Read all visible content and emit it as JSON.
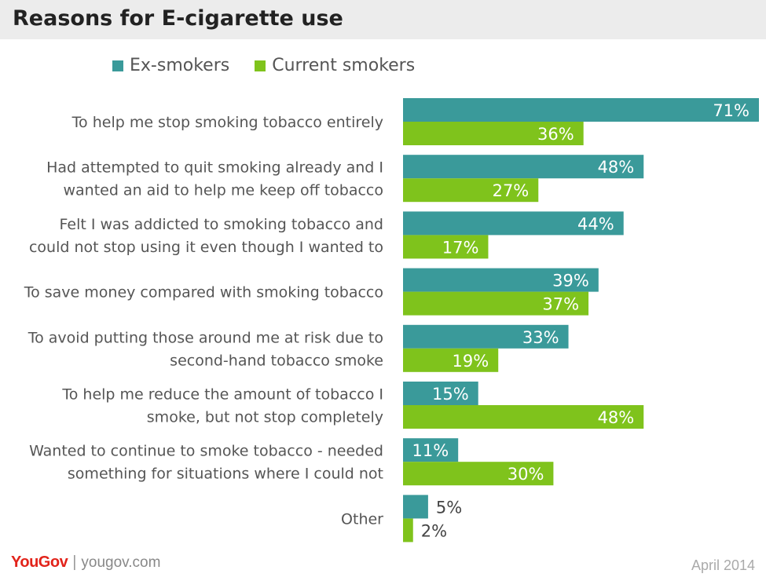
{
  "chart_data": {
    "type": "bar",
    "orientation": "horizontal",
    "title": "Reasons for E-cigarette use",
    "categories": [
      [
        "To help me stop smoking tobacco entirely"
      ],
      [
        "Had attempted to quit smoking already and I",
        "wanted an aid to help me keep off tobacco"
      ],
      [
        "Felt I was addicted to smoking tobacco and",
        "could not stop using it even though I wanted to"
      ],
      [
        "To save money compared with smoking tobacco"
      ],
      [
        "To avoid putting those around me at risk due to",
        "second-hand tobacco smoke"
      ],
      [
        "To help me reduce the amount of tobacco I",
        "smoke, but not stop completely"
      ],
      [
        "Wanted to continue to smoke tobacco - needed",
        "something for situations where I could not"
      ],
      [
        "Other"
      ]
    ],
    "series": [
      {
        "name": "Ex-smokers",
        "color": "#3a9a9a",
        "values": [
          71,
          48,
          44,
          39,
          33,
          15,
          11,
          5
        ]
      },
      {
        "name": "Current smokers",
        "color": "#7fc31c",
        "values": [
          36,
          27,
          17,
          37,
          19,
          48,
          30,
          2
        ]
      }
    ],
    "value_suffix": "%",
    "xlim": [
      0,
      71
    ],
    "legend_position": "top",
    "grid": false
  },
  "footer": {
    "logo_you": "You",
    "logo_gov": "Gov",
    "separator": "|",
    "url": "yougov.com",
    "date": "April 2014"
  }
}
